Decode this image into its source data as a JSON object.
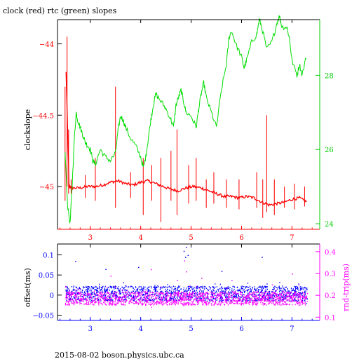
{
  "title": "clock (red) rtc (green) slopes",
  "footer": "2015-08-02  boson.physics.ubc.ca",
  "colors": {
    "clock": "#ff0000",
    "rtc": "#00dd00",
    "offset": "#0000ff",
    "rndtrip": "#ff00ff",
    "axis": "#000000"
  },
  "chart_data": [
    {
      "type": "line",
      "ylabel": "clockslope",
      "y2label": "",
      "xlim": [
        2.35,
        7.55
      ],
      "ylim": [
        -45.3,
        -43.83
      ],
      "y2lim": [
        23.85,
        29.5
      ],
      "grid": false,
      "x_ticks": [
        3,
        4,
        5,
        6,
        7
      ],
      "x_tick_labels": [
        "3",
        "4",
        "5",
        "6",
        "7"
      ],
      "y_ticks": [
        -44,
        -44.5,
        -45
      ],
      "y_tick_labels": [
        "−44",
        "−44.5",
        "−45"
      ],
      "y2_ticks": [
        28,
        26,
        24
      ],
      "y2_tick_labels": [
        "28",
        "26",
        "24"
      ],
      "series": [
        {
          "name": "clock",
          "axis": "left",
          "x": [
            2.52,
            2.58,
            2.65,
            2.8,
            2.95,
            3.1,
            3.25,
            3.4,
            3.55,
            3.7,
            3.85,
            4.0,
            4.15,
            4.3,
            4.45,
            4.6,
            4.75,
            4.9,
            5.05,
            5.2,
            5.35,
            5.5,
            5.65,
            5.8,
            5.95,
            6.1,
            6.25,
            6.4,
            6.55,
            6.7,
            6.85,
            7.0,
            7.15,
            7.3
          ],
          "y": [
            -44.2,
            -45.0,
            -45.01,
            -45.01,
            -45.0,
            -45.0,
            -44.99,
            -44.97,
            -44.96,
            -44.98,
            -44.99,
            -44.97,
            -44.96,
            -44.98,
            -45.0,
            -45.02,
            -45.03,
            -45.01,
            -45.0,
            -45.01,
            -45.03,
            -45.05,
            -45.07,
            -45.07,
            -45.08,
            -45.07,
            -45.08,
            -45.11,
            -45.13,
            -45.12,
            -45.11,
            -45.09,
            -45.08,
            -45.11
          ]
        },
        {
          "name": "clock spikes",
          "axis": "left",
          "x": [
            2.5,
            2.54,
            2.57,
            2.62,
            2.9,
            3.1,
            3.5,
            3.8,
            4.05,
            4.22,
            4.4,
            4.6,
            4.72,
            4.95,
            5.1,
            5.3,
            5.45,
            5.7,
            5.95,
            6.3,
            6.42,
            6.5,
            6.65,
            6.85,
            7.05,
            7.25
          ],
          "top": [
            -44.3,
            -43.95,
            -44.6,
            -44.95,
            -44.92,
            -44.8,
            -44.3,
            -44.9,
            -44.8,
            -44.85,
            -44.8,
            -44.75,
            -44.6,
            -44.85,
            -44.8,
            -44.95,
            -44.9,
            -44.95,
            -44.95,
            -44.9,
            -44.95,
            -44.5,
            -44.95,
            -45.0,
            -44.98,
            -45.0
          ],
          "bottom": [
            -45.1,
            -45.0,
            -45.05,
            -45.05,
            -45.08,
            -45.1,
            -45.15,
            -45.08,
            -45.2,
            -45.1,
            -45.25,
            -45.1,
            -45.2,
            -45.12,
            -45.1,
            -45.15,
            -45.12,
            -45.15,
            -45.16,
            -45.15,
            -45.22,
            -45.18,
            -45.2,
            -45.15,
            -45.16,
            -45.14
          ]
        },
        {
          "name": "rtc",
          "axis": "right",
          "x": [
            2.5,
            2.55,
            2.6,
            2.64,
            2.68,
            2.72,
            2.75,
            2.8,
            2.85,
            2.9,
            2.95,
            3.0,
            3.05,
            3.1,
            3.2,
            3.3,
            3.4,
            3.5,
            3.55,
            3.6,
            3.65,
            3.7,
            3.8,
            3.9,
            4.0,
            4.05,
            4.1,
            4.15,
            4.2,
            4.25,
            4.3,
            4.4,
            4.5,
            4.6,
            4.65,
            4.7,
            4.75,
            4.8,
            4.85,
            4.9,
            5.0,
            5.1,
            5.15,
            5.2,
            5.25,
            5.3,
            5.4,
            5.5,
            5.6,
            5.7,
            5.75,
            5.8,
            5.9,
            6.0,
            6.05,
            6.1,
            6.2,
            6.3,
            6.35,
            6.4,
            6.5,
            6.6,
            6.7,
            6.75,
            6.8,
            6.9,
            6.95,
            7.0,
            7.1,
            7.15,
            7.2,
            7.3
          ],
          "y": [
            25.9,
            24.5,
            24.0,
            25.0,
            26.2,
            27.0,
            26.8,
            26.6,
            26.4,
            26.2,
            26.1,
            26.0,
            25.7,
            25.6,
            26.0,
            25.8,
            25.7,
            25.9,
            26.5,
            26.9,
            26.8,
            26.6,
            26.3,
            26.1,
            25.8,
            25.5,
            25.8,
            26.3,
            26.8,
            27.2,
            27.5,
            27.3,
            27.1,
            26.8,
            26.6,
            27.2,
            27.4,
            27.6,
            27.3,
            27.0,
            26.9,
            26.6,
            27.1,
            27.5,
            27.8,
            27.4,
            27.0,
            26.6,
            27.6,
            28.3,
            29.0,
            29.2,
            28.8,
            28.5,
            28.2,
            28.4,
            28.9,
            29.1,
            29.5,
            29.3,
            28.7,
            28.9,
            29.4,
            29.6,
            29.3,
            29.3,
            29.0,
            28.4,
            28.0,
            28.3,
            28.0,
            28.6
          ]
        }
      ]
    },
    {
      "type": "scatter",
      "ylabel": "offset(ms)",
      "y2label": "rnd-trip(ms)",
      "xlim": [
        2.35,
        7.55
      ],
      "ylim": [
        -0.063,
        0.127
      ],
      "y2lim": [
        0.085,
        0.435
      ],
      "grid": false,
      "x_ticks": [
        3,
        4,
        5,
        6,
        7
      ],
      "x_tick_labels": [
        "3",
        "4",
        "5",
        "6",
        "7"
      ],
      "y_ticks": [
        0.1,
        0.05,
        0,
        -0.05
      ],
      "y_tick_labels": [
        "0.1",
        "0.05",
        "0",
        "−0.05"
      ],
      "y2_ticks": [
        0.4,
        0.3,
        0.2,
        0.1
      ],
      "y2_tick_labels": [
        "0.4",
        "0.3",
        "0.2",
        "0.1"
      ],
      "series": [
        {
          "name": "offset",
          "axis": "left",
          "x_range": [
            2.5,
            7.3
          ],
          "band": [
            -0.015,
            0.022
          ],
          "outliers_x": [
            2.7,
            3.3,
            3.95,
            4.85,
            4.88,
            4.9,
            4.93,
            5.6,
            6.4
          ],
          "outliers_y": [
            0.085,
            0.065,
            0.07,
            0.11,
            0.095,
            0.12,
            0.1,
            0.06,
            0.095
          ]
        },
        {
          "name": "rnd-trip",
          "axis": "right",
          "x_range": [
            2.5,
            7.3
          ],
          "band": [
            0.155,
            0.215
          ],
          "outliers_x": [
            3.4,
            4.2,
            4.72,
            4.86,
            4.9,
            5.2,
            5.8,
            6.6,
            7.0
          ],
          "outliers_y": [
            0.29,
            0.32,
            0.27,
            0.36,
            0.31,
            0.28,
            0.27,
            0.25,
            0.3
          ]
        }
      ]
    }
  ]
}
